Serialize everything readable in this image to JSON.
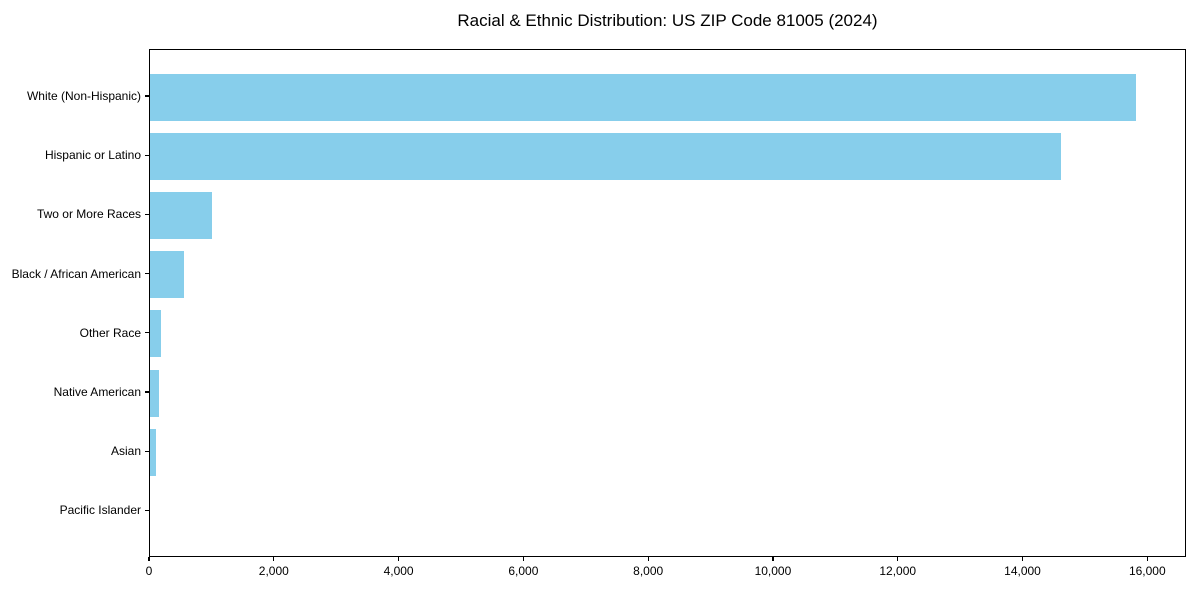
{
  "chart_data": {
    "type": "bar",
    "orientation": "horizontal",
    "title": "Racial & Ethnic Distribution: US ZIP Code 81005 (2024)",
    "categories": [
      "White (Non-Hispanic)",
      "Hispanic or Latino",
      "Two or More Races",
      "Black / African American",
      "Other Race",
      "Native American",
      "Asian",
      "Pacific Islander"
    ],
    "values": [
      15800,
      14600,
      1000,
      550,
      180,
      150,
      90,
      0
    ],
    "title_text": "Racial & Ethnic Distribution: US ZIP Code 81005 (2024)",
    "xlabel": "",
    "ylabel": "",
    "xlim": [
      0,
      16620
    ],
    "x_ticks": [
      0,
      2000,
      4000,
      6000,
      8000,
      10000,
      12000,
      14000,
      16000
    ],
    "x_tick_labels": [
      "0",
      "2,000",
      "4,000",
      "6,000",
      "8,000",
      "10,000",
      "12,000",
      "14,000",
      "16,000"
    ],
    "bar_color": "#87CEEB",
    "axis_color": "#000000",
    "background_color": "#FFFFFF",
    "grid": false,
    "legend": null
  }
}
